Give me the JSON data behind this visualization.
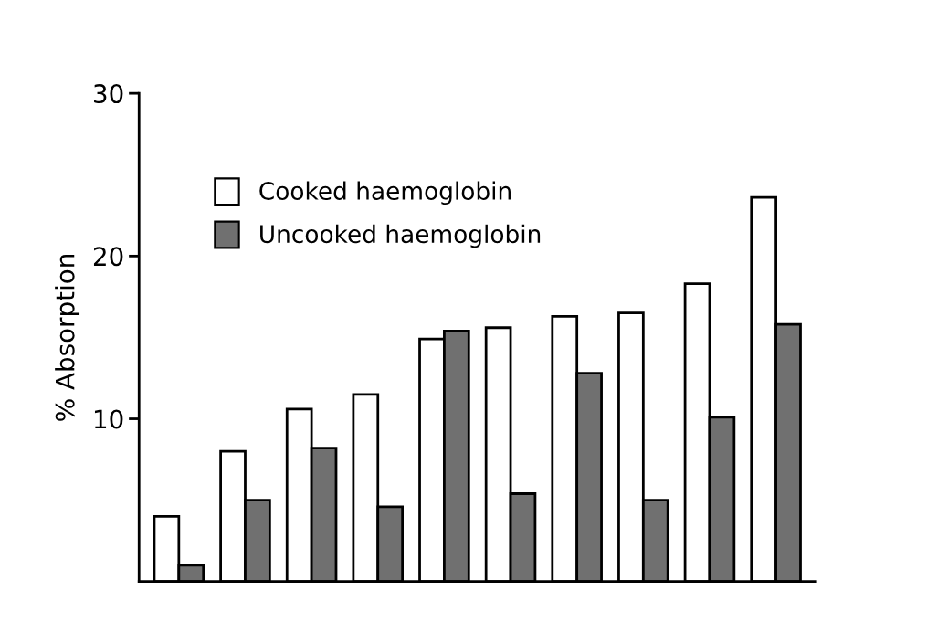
{
  "chart_data": {
    "type": "bar",
    "ylabel": "% Absorption",
    "categories": [
      null,
      null,
      null,
      null,
      null,
      null,
      null,
      null,
      null,
      null
    ],
    "series": [
      {
        "name": "Cooked haemoglobin",
        "color": "#ffffff",
        "values": [
          4.0,
          8.0,
          10.6,
          11.5,
          14.9,
          15.6,
          16.3,
          16.5,
          18.3,
          23.6
        ]
      },
      {
        "name": "Uncooked haemoglobin",
        "color": "#707070",
        "values": [
          1.0,
          5.0,
          8.2,
          4.6,
          15.4,
          5.4,
          12.8,
          5.0,
          10.1,
          15.8
        ]
      }
    ],
    "ylim": [
      0,
      30
    ],
    "yticks": [
      10,
      20,
      30
    ],
    "legend": "top left",
    "grid": false
  }
}
